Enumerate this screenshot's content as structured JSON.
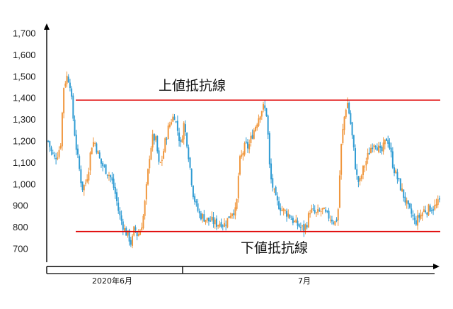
{
  "chart_data": {
    "type": "candlestick",
    "ylim": [
      650,
      1750
    ],
    "y_ticks": [
      "1,700",
      "1,600",
      "1,500",
      "1,400",
      "1,300",
      "1,200",
      "1,100",
      "1,000",
      "900",
      "800",
      "700"
    ],
    "y_tick_values": [
      1700,
      1600,
      1500,
      1400,
      1300,
      1200,
      1100,
      1000,
      900,
      800,
      700
    ],
    "x_periods": [
      {
        "label": "2020年6月"
      },
      {
        "label": "7月"
      }
    ],
    "resistance_line": {
      "label": "上値抵抗線",
      "value": 1390,
      "color": "#e00000"
    },
    "support_line": {
      "label": "下値抵抗線",
      "value": 780,
      "color": "#e00000"
    },
    "colors": {
      "up": "#f0963c",
      "down": "#2f9bd3",
      "axis": "#000000"
    },
    "price_path": [
      1200,
      1150,
      1120,
      1140,
      1180,
      1450,
      1500,
      1480,
      1320,
      1180,
      1080,
      980,
      1000,
      1060,
      1180,
      1200,
      1150,
      1100,
      1080,
      1060,
      1040,
      1000,
      940,
      860,
      820,
      780,
      760,
      720,
      800,
      760,
      790,
      860,
      1000,
      1150,
      1220,
      1200,
      1080,
      1120,
      1200,
      1260,
      1300,
      1320,
      1250,
      1180,
      1280,
      1200,
      1080,
      960,
      900,
      860,
      850,
      840,
      830,
      830,
      820,
      815,
      825,
      810,
      830,
      860,
      880,
      870,
      1100,
      1140,
      1180,
      1170,
      1220,
      1260,
      1300,
      1340,
      1360,
      1320,
      1040,
      980,
      920,
      900,
      880,
      870,
      860,
      840,
      820,
      810,
      800,
      790,
      820,
      880,
      870,
      860,
      870,
      880,
      860,
      850,
      840,
      820,
      850,
      1160,
      1300,
      1390,
      1300,
      1180,
      1040,
      1000,
      1060,
      1100,
      1140,
      1180,
      1200,
      1170,
      1140,
      1180,
      1220,
      1160,
      1080,
      1040,
      1000,
      960,
      920,
      880,
      860,
      820,
      840,
      860,
      880,
      880,
      890,
      890,
      900,
      920
    ]
  },
  "annotations": {
    "resistance": "上値抵抗線",
    "support": "下値抵抗線"
  }
}
